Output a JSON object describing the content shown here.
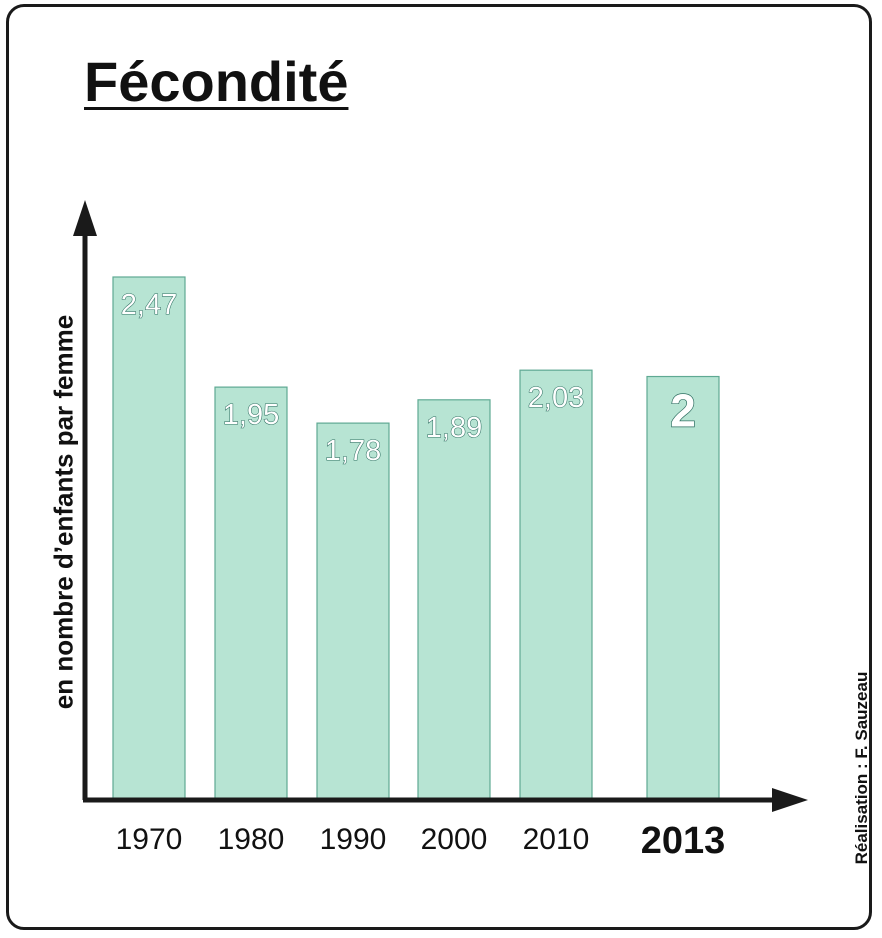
{
  "title": "Fécondité",
  "credit": "Réalisation : F. Sauzeau",
  "chart_data": {
    "type": "bar",
    "title": "Fécondité",
    "xlabel": "",
    "ylabel": "en nombre d’enfants par femme",
    "categories": [
      "1970",
      "1980",
      "1990",
      "2000",
      "2010",
      "2013"
    ],
    "values": [
      2.47,
      1.95,
      1.78,
      1.89,
      2.03,
      2
    ],
    "value_labels": [
      "2,47",
      "1,95",
      "1,78",
      "1,89",
      "2,03",
      "2"
    ],
    "highlight": "2013",
    "ylim": [
      0,
      2.8
    ],
    "grid": false,
    "colors": {
      "bar_fill": "#b7e4d3",
      "bar_stroke": "#5fa993",
      "axis": "#1a1a1a"
    }
  }
}
